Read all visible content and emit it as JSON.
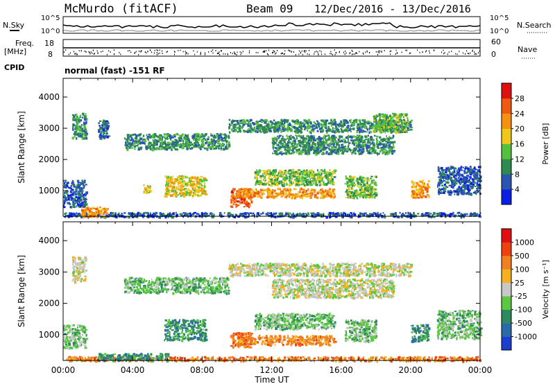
{
  "header": {
    "station": "McMurdo (fitACF)",
    "beam": "Beam 09",
    "date_range": "12/Dec/2016 - 13/Dec/2016"
  },
  "top_panel": {
    "nsky_label": "N.Sky",
    "nsearch_label": "N.Search",
    "freq_label": "Freq.",
    "freq_unit": "[MHz]",
    "nave_label": "Nave",
    "cpid_label": "CPID",
    "cpid_value": "normal (fast) -151 RF",
    "noise_ticks_left": [
      "10^5",
      "10^0"
    ],
    "noise_ticks_right": [
      "10^5",
      "10^0"
    ],
    "freq_ticks": [
      "18",
      "8"
    ],
    "nave_ticks": [
      "60",
      "0"
    ]
  },
  "chart_data": [
    {
      "type": "heatmap",
      "name": "Power",
      "ylabel": "Slant Range [km]",
      "yticks": [
        "1000",
        "2000",
        "3000",
        "4000"
      ],
      "ylim": [
        180,
        4600
      ],
      "xlim": [
        0,
        24
      ],
      "xticks": [
        "00:00",
        "04:00",
        "08:00",
        "12:00",
        "16:00",
        "20:00",
        "00:00"
      ],
      "colorbar_label": "Power [dB]",
      "colorbar_ticks": [
        "4",
        "8",
        "12",
        "16",
        "20",
        "24",
        "28"
      ],
      "colorbar_colors": [
        "#0a1ee6",
        "#2a55b0",
        "#2e8a4e",
        "#55c040",
        "#f2c818",
        "#f59010",
        "#f05a10",
        "#e01010"
      ],
      "regions": [
        {
          "t0": 0.0,
          "t1": 1.3,
          "r0": 500,
          "r1": 1350,
          "level": 1
        },
        {
          "t0": 0.5,
          "t1": 1.3,
          "r0": 2700,
          "r1": 3500,
          "level": 2
        },
        {
          "t0": 2.0,
          "t1": 2.6,
          "r0": 2700,
          "r1": 3300,
          "level": 1
        },
        {
          "t0": 3.5,
          "t1": 9.5,
          "r0": 2350,
          "r1": 2850,
          "level": 2
        },
        {
          "t0": 5.8,
          "t1": 8.2,
          "r0": 850,
          "r1": 1500,
          "level": 4
        },
        {
          "t0": 4.6,
          "t1": 5.0,
          "r0": 900,
          "r1": 1200,
          "level": 4
        },
        {
          "t0": 9.6,
          "t1": 10.8,
          "r0": 500,
          "r1": 1100,
          "level": 6
        },
        {
          "t0": 10.0,
          "t1": 15.6,
          "r0": 800,
          "r1": 1100,
          "level": 5
        },
        {
          "t0": 11.0,
          "t1": 15.6,
          "r0": 1200,
          "r1": 1700,
          "level": 3
        },
        {
          "t0": 9.5,
          "t1": 20.0,
          "r0": 2900,
          "r1": 3300,
          "level": 2
        },
        {
          "t0": 12.0,
          "t1": 19.0,
          "r0": 2200,
          "r1": 2800,
          "level": 2
        },
        {
          "t0": 16.2,
          "t1": 18.0,
          "r0": 800,
          "r1": 1500,
          "level": 3
        },
        {
          "t0": 17.8,
          "t1": 19.8,
          "r0": 2900,
          "r1": 3500,
          "level": 3
        },
        {
          "t0": 20.0,
          "t1": 21.0,
          "r0": 800,
          "r1": 1350,
          "level": 5
        },
        {
          "t0": 21.5,
          "t1": 24.0,
          "r0": 900,
          "r1": 1800,
          "level": 1
        },
        {
          "t0": 0.0,
          "t1": 24.0,
          "r0": 180,
          "r1": 320,
          "level": 1
        },
        {
          "t0": 1.0,
          "t1": 2.5,
          "r0": 180,
          "r1": 500,
          "level": 5
        }
      ]
    },
    {
      "type": "heatmap",
      "name": "Velocity",
      "ylabel": "Slant Range [km]",
      "yticks": [
        "1000",
        "2000",
        "3000",
        "4000"
      ],
      "ylim": [
        180,
        4600
      ],
      "xlim": [
        0,
        24
      ],
      "xticks": [
        "00:00",
        "04:00",
        "08:00",
        "12:00",
        "16:00",
        "20:00",
        "00:00"
      ],
      "xlabel": "Time UT",
      "colorbar_label": "Velocity [m s⁻¹]",
      "colorbar_ticks": [
        "1000",
        "500",
        "100",
        "25",
        "-25",
        "-100",
        "-500",
        "-1000"
      ],
      "colorbar_colors": [
        "#1a3ed0",
        "#2a6aa8",
        "#2e8a5e",
        "#5ac840",
        "#c8c8c8",
        "#f5b020",
        "#f08020",
        "#f04010",
        "#e01010"
      ],
      "regions": [
        {
          "t0": 0.0,
          "t1": 1.3,
          "r0": 600,
          "r1": 1350,
          "level": 3
        },
        {
          "t0": 0.5,
          "t1": 1.3,
          "r0": 2700,
          "r1": 3500,
          "level": 4
        },
        {
          "t0": 3.5,
          "t1": 9.5,
          "r0": 2350,
          "r1": 2850,
          "level": 3
        },
        {
          "t0": 5.8,
          "t1": 8.2,
          "r0": 850,
          "r1": 1500,
          "level": 2
        },
        {
          "t0": 9.6,
          "t1": 10.8,
          "r0": 600,
          "r1": 1100,
          "level": 6
        },
        {
          "t0": 10.0,
          "t1": 15.6,
          "r0": 700,
          "r1": 1000,
          "level": 6
        },
        {
          "t0": 11.0,
          "t1": 15.6,
          "r0": 1200,
          "r1": 1700,
          "level": 3
        },
        {
          "t0": 9.5,
          "t1": 20.0,
          "r0": 2900,
          "r1": 3300,
          "level": 4
        },
        {
          "t0": 12.0,
          "t1": 19.0,
          "r0": 2200,
          "r1": 2800,
          "level": 4
        },
        {
          "t0": 16.2,
          "t1": 18.0,
          "r0": 800,
          "r1": 1500,
          "level": 3
        },
        {
          "t0": 20.0,
          "t1": 21.0,
          "r0": 800,
          "r1": 1350,
          "level": 2
        },
        {
          "t0": 21.5,
          "t1": 24.0,
          "r0": 900,
          "r1": 1800,
          "level": 3
        },
        {
          "t0": 0.0,
          "t1": 24.0,
          "r0": 180,
          "r1": 320,
          "level": 6
        },
        {
          "t0": 2.0,
          "t1": 6.0,
          "r0": 180,
          "r1": 420,
          "level": 2
        }
      ]
    }
  ]
}
